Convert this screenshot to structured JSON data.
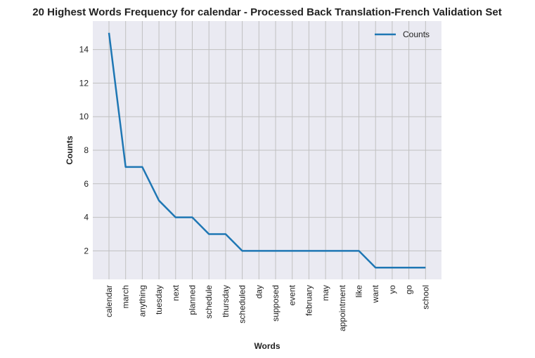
{
  "chart_data": {
    "type": "line",
    "title": "20 Highest Words Frequency for calendar - Processed Back Translation-French Validation Set",
    "xlabel": "Words",
    "ylabel": "Counts",
    "categories": [
      "calendar",
      "march",
      "anything",
      "tuesday",
      "next",
      "planned",
      "schedule",
      "thursday",
      "scheduled",
      "day",
      "supposed",
      "event",
      "february",
      "may",
      "appointment",
      "like",
      "want",
      "yo",
      "go",
      "school"
    ],
    "series": [
      {
        "name": "Counts",
        "values": [
          15,
          7,
          7,
          5,
          4,
          4,
          3,
          3,
          2,
          2,
          2,
          2,
          2,
          2,
          2,
          2,
          1,
          1,
          1,
          1
        ],
        "color": "#1f77b4"
      }
    ],
    "ylim": [
      0.3,
      15.7
    ],
    "yticks": [
      2,
      4,
      6,
      8,
      10,
      12,
      14
    ],
    "grid": true,
    "legend": "top-right",
    "background": "#eaeaf2",
    "grid_color": "#c0c0c0"
  }
}
